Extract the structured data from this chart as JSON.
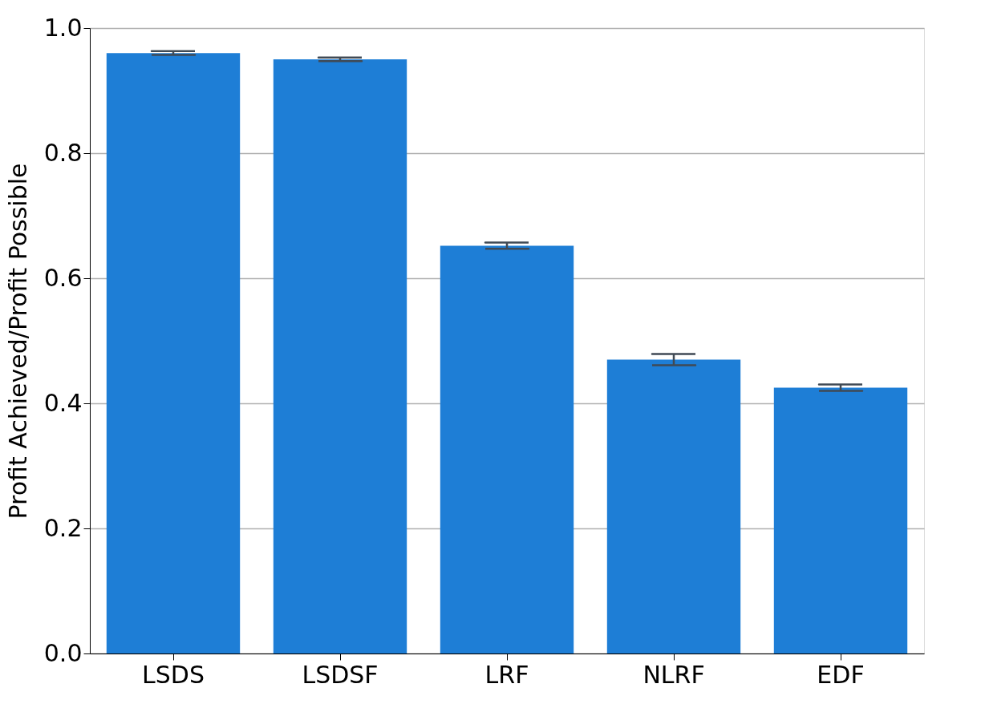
{
  "chart_data": {
    "type": "bar",
    "ylabel": "Profit Achieved/Profit Possible",
    "categories": [
      "LSDS",
      "LSDSF",
      "LRF",
      "NLRF",
      "EDF"
    ],
    "values": [
      0.96,
      0.95,
      0.652,
      0.47,
      0.425
    ],
    "errors": [
      0.003,
      0.003,
      0.005,
      0.009,
      0.005
    ],
    "color": "#1e7ed6",
    "ylim": [
      0,
      1.0
    ],
    "yticks": [
      {
        "value": 0,
        "label": "0.0"
      },
      {
        "value": 0.2,
        "label": "0.2"
      },
      {
        "value": 0.4,
        "label": "0.4"
      },
      {
        "value": 0.6,
        "label": "0.6"
      },
      {
        "value": 0.8,
        "label": "0.8"
      },
      {
        "value": 1.0,
        "label": "1.0"
      }
    ],
    "grid": "y"
  }
}
